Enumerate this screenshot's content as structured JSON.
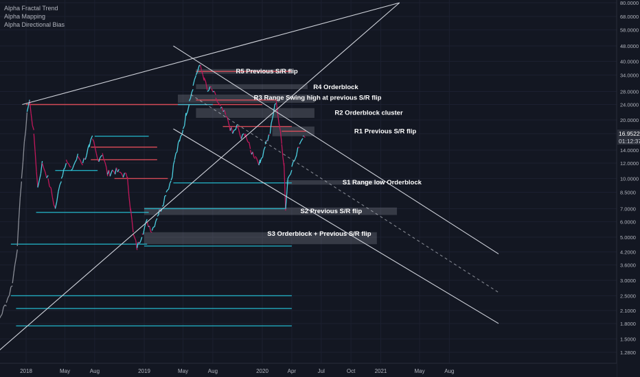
{
  "indicators": [
    "Alpha Fractal Trend",
    "Alpha Mapping",
    "Alpha Directional Bias"
  ],
  "chart_data": {
    "type": "line",
    "instrument_type": "candlestick price chart",
    "y_scale": "log",
    "ylim": [
      1.1,
      80
    ],
    "y_ticks": [
      "80.0000",
      "68.0000",
      "58.0000",
      "48.0000",
      "40.0000",
      "34.0000",
      "28.0000",
      "24.0000",
      "20.0000",
      "17.0000",
      "14.0000",
      "12.0000",
      "10.0000",
      "8.5000",
      "7.0000",
      "6.0000",
      "5.0000",
      "4.2000",
      "3.6000",
      "3.0000",
      "2.5000",
      "2.1000",
      "1.8000",
      "1.5000",
      "1.2800"
    ],
    "y_tick_values": [
      80,
      68,
      58,
      48,
      40,
      34,
      28,
      24,
      20,
      17,
      14,
      12,
      10,
      8.5,
      7,
      6,
      5,
      4.2,
      3.6,
      3,
      2.5,
      2.1,
      1.8,
      1.5,
      1.28
    ],
    "xlim": [
      "2017-09-01",
      "2020-12-20"
    ],
    "x_ticks": [
      "2018",
      "May",
      "Aug",
      "2019",
      "May",
      "Aug",
      "2020",
      "Apr",
      "Jul",
      "Oct",
      "2021",
      "May",
      "Aug"
    ],
    "x_tick_dates": [
      "2018-01-01",
      "2018-05-01",
      "2018-08-01",
      "2019-01-01",
      "2019-05-01",
      "2019-08-01",
      "2020-01-01",
      "2020-04-01",
      "2020-07-01",
      "2020-10-01",
      "2021-01-01",
      "2021-05-01",
      "2021-08-01"
    ],
    "current_price": "16.9522",
    "countdown": "01:12:37",
    "price_path": [
      [
        "2017-09-05",
        1.4
      ],
      [
        "2017-09-20",
        1.6
      ],
      [
        "2017-10-10",
        1.9
      ],
      [
        "2017-11-01",
        2.3
      ],
      [
        "2017-11-20",
        2.9
      ],
      [
        "2017-12-05",
        4.5
      ],
      [
        "2017-12-18",
        10
      ],
      [
        "2018-01-04",
        22
      ],
      [
        "2018-01-12",
        25
      ],
      [
        "2018-01-25",
        17
      ],
      [
        "2018-02-06",
        9
      ],
      [
        "2018-02-20",
        12
      ],
      [
        "2018-03-10",
        10
      ],
      [
        "2018-04-01",
        7
      ],
      [
        "2018-04-20",
        10
      ],
      [
        "2018-05-05",
        12.5
      ],
      [
        "2018-05-20",
        11
      ],
      [
        "2018-06-10",
        13
      ],
      [
        "2018-06-25",
        12
      ],
      [
        "2018-07-15",
        14.5
      ],
      [
        "2018-07-25",
        16
      ],
      [
        "2018-08-10",
        12.5
      ],
      [
        "2018-08-25",
        13.5
      ],
      [
        "2018-09-10",
        10.5
      ],
      [
        "2018-09-25",
        11
      ],
      [
        "2018-10-15",
        10.8
      ],
      [
        "2018-11-10",
        10.2
      ],
      [
        "2018-11-20",
        7
      ],
      [
        "2018-11-28",
        5.2
      ],
      [
        "2018-12-10",
        4.4
      ],
      [
        "2018-12-25",
        5.2
      ],
      [
        "2019-01-10",
        6
      ],
      [
        "2019-01-25",
        5.4
      ],
      [
        "2019-02-10",
        6.4
      ],
      [
        "2019-02-25",
        7.2
      ],
      [
        "2019-03-10",
        8.5
      ],
      [
        "2019-03-25",
        9.8
      ],
      [
        "2019-04-05",
        12.5
      ],
      [
        "2019-04-20",
        15.5
      ],
      [
        "2019-05-01",
        18
      ],
      [
        "2019-05-10",
        21
      ],
      [
        "2019-05-20",
        25
      ],
      [
        "2019-06-01",
        30
      ],
      [
        "2019-06-10",
        34
      ],
      [
        "2019-06-20",
        38
      ],
      [
        "2019-06-27",
        36
      ],
      [
        "2019-07-05",
        33
      ],
      [
        "2019-07-15",
        28
      ],
      [
        "2019-07-28",
        29
      ],
      [
        "2019-08-10",
        26
      ],
      [
        "2019-08-25",
        23
      ],
      [
        "2019-09-10",
        21
      ],
      [
        "2019-09-20",
        19
      ],
      [
        "2019-10-01",
        17
      ],
      [
        "2019-10-15",
        18.5
      ],
      [
        "2019-10-28",
        16
      ],
      [
        "2019-11-10",
        17
      ],
      [
        "2019-11-25",
        14
      ],
      [
        "2019-12-10",
        13
      ],
      [
        "2019-12-25",
        12
      ],
      [
        "2020-01-10",
        15
      ],
      [
        "2020-01-25",
        17
      ],
      [
        "2020-02-05",
        22
      ],
      [
        "2020-02-13",
        25
      ],
      [
        "2020-02-22",
        19
      ],
      [
        "2020-03-01",
        15
      ],
      [
        "2020-03-08",
        12
      ],
      [
        "2020-03-13",
        7
      ],
      [
        "2020-03-20",
        10
      ],
      [
        "2020-04-01",
        11.5
      ],
      [
        "2020-04-15",
        13
      ],
      [
        "2020-04-25",
        15
      ],
      [
        "2020-05-05",
        16.5
      ],
      [
        "2020-05-12",
        16.95
      ]
    ],
    "horizontal_levels": [
      {
        "price": 24,
        "color": "#f7525f",
        "from": "2018-01-01",
        "to": "2020-01-01"
      },
      {
        "price": 14.5,
        "color": "#f7525f",
        "from": "2018-07-20",
        "to": "2019-02-10"
      },
      {
        "price": 12.5,
        "color": "#f7525f",
        "from": "2018-07-20",
        "to": "2019-02-10"
      },
      {
        "price": 10,
        "color": "#f7525f",
        "from": "2018-10-01",
        "to": "2019-03-15"
      },
      {
        "price": 11,
        "color": "#26c6da",
        "from": "2018-04-01",
        "to": "2018-08-10"
      },
      {
        "price": 16.5,
        "color": "#26c6da",
        "from": "2018-08-01",
        "to": "2019-01-15"
      },
      {
        "price": 9.5,
        "color": "#26c6da",
        "from": "2019-04-01",
        "to": "2020-04-01"
      },
      {
        "price": 6.7,
        "color": "#26c6da",
        "from": "2018-02-01",
        "to": "2019-01-15"
      },
      {
        "price": 7,
        "color": "#26c6da",
        "from": "2019-01-01",
        "to": "2020-03-15"
      },
      {
        "price": 4.6,
        "color": "#26c6da",
        "from": "2017-11-15",
        "to": "2019-01-10"
      },
      {
        "price": 4.5,
        "color": "#26c6da",
        "from": "2019-01-01",
        "to": "2020-04-01"
      },
      {
        "price": 2.5,
        "color": "#26c6da",
        "from": "2017-11-15",
        "to": "2020-04-01"
      },
      {
        "price": 2.15,
        "color": "#26c6da",
        "from": "2017-12-01",
        "to": "2020-04-01"
      },
      {
        "price": 1.75,
        "color": "#26c6da",
        "from": "2017-12-01",
        "to": "2020-04-01"
      },
      {
        "price": 35.5,
        "color": "#f7525f",
        "from": "2019-06-10",
        "to": "2020-04-01"
      },
      {
        "price": 25.3,
        "color": "#f7525f",
        "from": "2019-06-10",
        "to": "2020-02-15"
      },
      {
        "price": 24,
        "color": "#26c6da",
        "from": "2019-04-15",
        "to": "2019-08-01"
      },
      {
        "price": 18.5,
        "color": "#f7525f",
        "from": "2019-09-01",
        "to": "2020-04-01"
      },
      {
        "price": 17.5,
        "color": "#f7525f",
        "from": "2020-03-01",
        "to": "2020-05-15"
      }
    ],
    "zones": [
      {
        "top": 36.5,
        "bottom": 34.5,
        "from": "2019-06-10",
        "to": "2020-04-01",
        "label": "R5 Previous S/R flip",
        "label_date": "2020-01-15",
        "label_price": 35.5
      },
      {
        "top": 30.5,
        "bottom": 28.8,
        "from": "2019-06-10",
        "to": "2020-05-20",
        "label": "R4 Orderblock",
        "label_date": "2020-08-15",
        "label_price": 29.5
      },
      {
        "top": 27,
        "bottom": 24.5,
        "from": "2019-04-15",
        "to": "2020-06-10",
        "label": "R3 Range Swing high at previous S/R flip",
        "label_date": "2020-06-20",
        "label_price": 26
      },
      {
        "top": 23,
        "bottom": 20.5,
        "from": "2019-06-10",
        "to": "2020-06-10",
        "label": "R2 Orderblock cluster",
        "label_date": "2020-11-25",
        "label_price": 21.8
      },
      {
        "top": 18.5,
        "bottom": 16.5,
        "from": "2020-02-01",
        "to": "2020-06-10",
        "label": "R1 Previous S/R flip",
        "label_date": "2021-01-15",
        "label_price": 17.5
      },
      {
        "top": 9.8,
        "bottom": 9.3,
        "from": "2020-03-15",
        "to": "2021-01-10",
        "label": "S1 Range low Orderblock",
        "label_date": "2021-01-05",
        "label_price": 9.55
      },
      {
        "top": 7.1,
        "bottom": 6.5,
        "from": "2019-01-01",
        "to": "2021-02-20",
        "label": "S2 Previous S/R flip",
        "label_date": "2020-08-01",
        "label_price": 6.8
      },
      {
        "top": 5.3,
        "bottom": 4.6,
        "from": "2019-01-01",
        "to": "2020-12-20",
        "label": "S3 Orderblock + Previous S/R flip",
        "label_date": "2020-06-25",
        "label_price": 5.2
      }
    ],
    "trendlines": [
      {
        "from": [
          "2017-12-20",
          24
        ],
        "to": [
          "2021-02-28",
          80
        ],
        "style": "solid"
      },
      {
        "from": [
          "2017-09-01",
          1.15
        ],
        "to": [
          "2021-02-28",
          80
        ],
        "style": "solid"
      },
      {
        "from": [
          "2019-04-01",
          48
        ],
        "to": [
          "2021-12-31",
          4.1
        ],
        "style": "solid"
      },
      {
        "from": [
          "2019-04-01",
          18
        ],
        "to": [
          "2021-12-31",
          1.8
        ],
        "style": "solid"
      },
      {
        "from": [
          "2019-05-25",
          27
        ],
        "to": [
          "2021-12-31",
          2.6
        ],
        "style": "dashed"
      }
    ]
  }
}
